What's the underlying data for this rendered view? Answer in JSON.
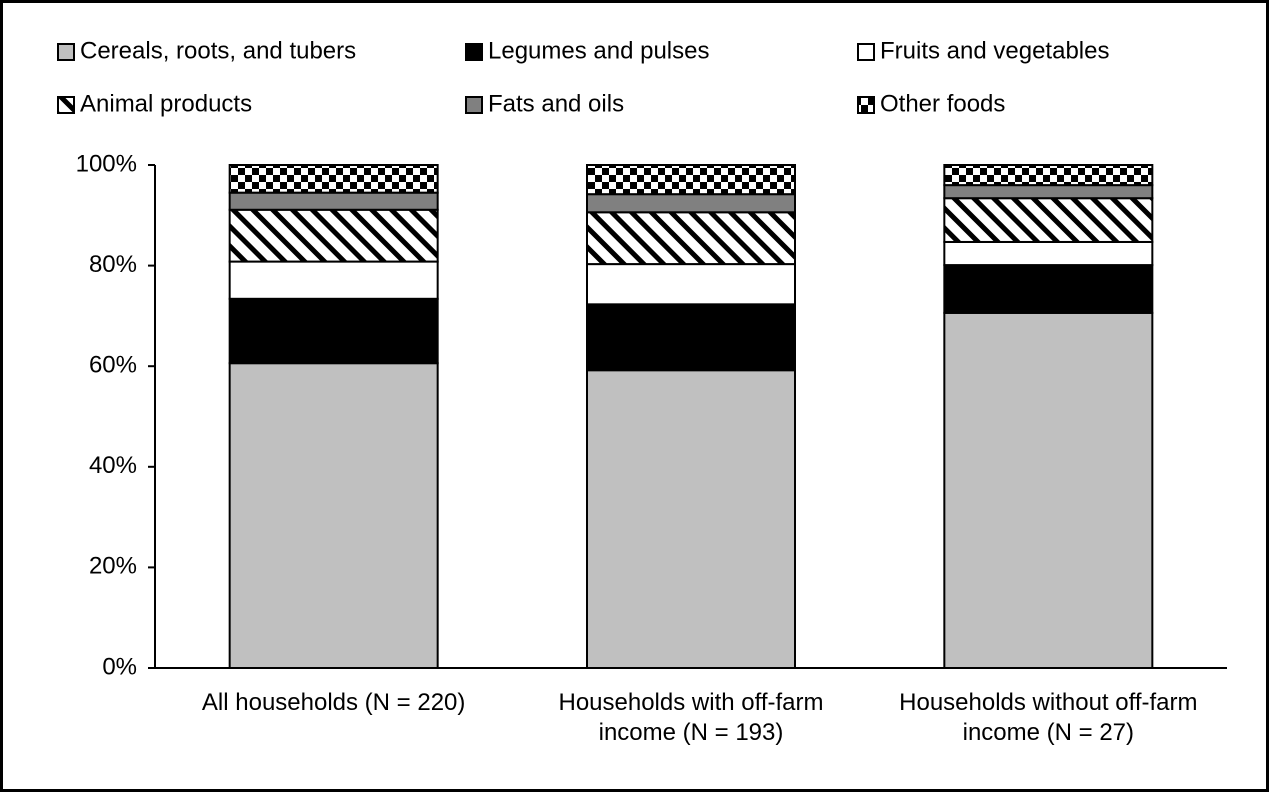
{
  "chart_data": {
    "type": "stacked_bar",
    "categories": [
      "All households (N = 220)",
      "Households with off-farm income (N = 193)",
      "Households without off-farm income (N = 27)"
    ],
    "series": [
      {
        "name": "Cereals, roots, and tubers",
        "color": "#c0c0c0",
        "values": [
          60.6,
          59.2,
          70.6
        ]
      },
      {
        "name": "Legumes and pulses",
        "color": "#000000",
        "values": [
          12.8,
          13.1,
          9.5
        ]
      },
      {
        "name": "Fruits and vegetables",
        "color": "#ffffff",
        "values": [
          7.4,
          8.0,
          4.6
        ]
      },
      {
        "name": "Animal products",
        "color": "#000000",
        "pattern": "diagonal",
        "values": [
          10.3,
          10.3,
          8.7
        ]
      },
      {
        "name": "Fats and oils",
        "color": "#808080",
        "values": [
          3.4,
          3.6,
          2.6
        ]
      },
      {
        "name": "Other foods",
        "color": "#000000",
        "pattern": "checker",
        "values": [
          5.5,
          5.8,
          4.0
        ]
      }
    ],
    "ylim": [
      0,
      100
    ],
    "yticks": [
      {
        "value": 0,
        "label": "0%"
      },
      {
        "value": 20,
        "label": "20%"
      },
      {
        "value": 40,
        "label": "40%"
      },
      {
        "value": 60,
        "label": "60%"
      },
      {
        "value": 80,
        "label": "80%"
      },
      {
        "value": 100,
        "label": "100%"
      }
    ],
    "legend": "top"
  }
}
